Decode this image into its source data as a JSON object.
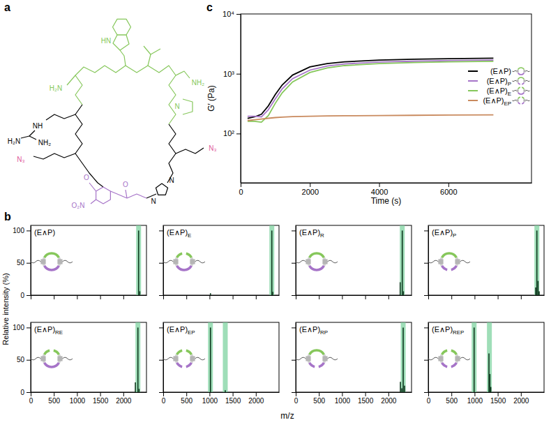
{
  "panel_labels": [
    "a",
    "b",
    "c"
  ],
  "structure": {
    "labels": [
      "HN",
      "H₂N",
      "NH₂",
      "N",
      "NH",
      "H₂N",
      "NH₂",
      "N₃",
      "N₃",
      "O₂N",
      "O",
      "O",
      "N",
      "N"
    ]
  },
  "chart_data": [
    {
      "type": "stick",
      "x_label": "m/z",
      "y_label": "Relative intensity (%)",
      "xlim": [
        0,
        2500
      ],
      "xticks": [
        0,
        500,
        1000,
        1500,
        2000
      ],
      "ylim": [
        0,
        108
      ],
      "yticks": [
        0,
        50,
        100
      ],
      "color": "#0f3a1f",
      "subplots": [
        {
          "title": "(E∧P)",
          "x": [
            2330,
            2355
          ],
          "values": [
            100,
            6
          ],
          "expected": [
            2330
          ]
        },
        {
          "title": "(E∧P)E",
          "x": [
            1020,
            2345,
            2365
          ],
          "values": [
            3,
            100,
            5
          ],
          "expected": [
            2345
          ]
        },
        {
          "title": "(E∧P)R",
          "x": [
            2255,
            2300,
            2325
          ],
          "values": [
            20,
            100,
            6
          ],
          "expected": [
            2300
          ]
        },
        {
          "title": "(E∧P)P",
          "x": [
            2320,
            2345,
            2370,
            2395
          ],
          "values": [
            12,
            100,
            22,
            6
          ],
          "expected": [
            2345
          ]
        },
        {
          "title": "(E∧P)RE",
          "x": [
            2260,
            2315,
            2340
          ],
          "values": [
            15,
            100,
            5
          ],
          "expected": [
            2315
          ]
        },
        {
          "title": "(E∧P)EP",
          "x": [
            1020,
            1340
          ],
          "values": [
            100,
            3
          ],
          "expected": [
            1020,
            1340
          ]
        },
        {
          "title": "(E∧P)RP",
          "x": [
            2260,
            2290,
            2320,
            2350
          ],
          "values": [
            16,
            6,
            100,
            10
          ],
          "expected": [
            2320
          ]
        },
        {
          "title": "(E∧P)REP",
          "x": [
            990,
            1310,
            1330,
            1350
          ],
          "values": [
            100,
            60,
            28,
            8
          ],
          "expected": [
            990,
            1320
          ]
        }
      ]
    },
    {
      "type": "line",
      "log": "y",
      "x_label": "Time (s)",
      "y_label": "G′ (Pa)",
      "xlim": [
        0,
        8400
      ],
      "xticks": [
        0,
        2000,
        4000,
        6000
      ],
      "ylim": [
        15,
        10000
      ],
      "yticks": [
        {
          "value": 100,
          "label": "10²"
        },
        {
          "value": 1000,
          "label": "10³"
        },
        {
          "value": 10000,
          "label": "10⁴"
        }
      ],
      "legend": "right",
      "x": [
        200,
        400,
        600,
        800,
        1000,
        1200,
        1500,
        2000,
        2500,
        3000,
        4000,
        5000,
        6000,
        7300
      ],
      "series": [
        {
          "name": "(E∧P)",
          "color": "#000000",
          "values": [
            180,
            190,
            210,
            290,
            450,
            650,
            950,
            1300,
            1480,
            1580,
            1690,
            1750,
            1790,
            1820
          ]
        },
        {
          "name": "(E∧P)P",
          "color": "#a674c8",
          "values": [
            195,
            195,
            190,
            250,
            380,
            560,
            830,
            1150,
            1350,
            1460,
            1570,
            1620,
            1660,
            1690
          ]
        },
        {
          "name": "(E∧P)E",
          "color": "#86c75b",
          "values": [
            160,
            160,
            155,
            200,
            320,
            480,
            730,
            1050,
            1250,
            1370,
            1480,
            1540,
            1580,
            1610
          ]
        },
        {
          "name": "(E∧P)EP",
          "color": "#c98a5e",
          "values": [
            165,
            170,
            175,
            180,
            185,
            188,
            192,
            195,
            197,
            198,
            200,
            202,
            204,
            205
          ]
        }
      ]
    }
  ]
}
